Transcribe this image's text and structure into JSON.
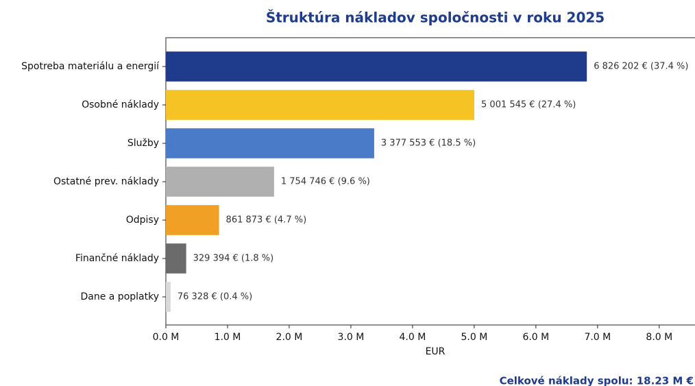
{
  "chart_data": {
    "type": "hbar",
    "title": "Štruktúra nákladov spoločnosti v roku 2025",
    "xlabel": "EUR",
    "annotation": "Celkové náklady spolu: 18.23 M €",
    "categories": [
      "Spotreba materiálu a energií",
      "Osobné náklady",
      "Služby",
      "Ostatné prev. náklady",
      "Odpisy",
      "Finančné náklady",
      "Dane a poplatky"
    ],
    "values": [
      6826202,
      5001545,
      3377553,
      1754746,
      861873,
      329394,
      76328
    ],
    "value_labels": [
      "6 826 202 €  (37.4 %)",
      "5 001 545 €  (27.4 %)",
      "3 377 553 €  (18.5 %)",
      "1 754 746 €  (9.6 %)",
      "861 873 €  (4.7 %)",
      "329 394 €  (1.8 %)",
      "76 328 €  (0.4 %)"
    ],
    "colors": [
      "#1f3c8c",
      "#f5c324",
      "#4a7bc8",
      "#b0b0b0",
      "#f0a024",
      "#6b6b6b",
      "#d9d9d9"
    ],
    "xlim": [
      0,
      8580000
    ],
    "xticks": [
      {
        "value": 0,
        "label": "0.0 M"
      },
      {
        "value": 1000000,
        "label": "1.0 M"
      },
      {
        "value": 2000000,
        "label": "2.0 M"
      },
      {
        "value": 3000000,
        "label": "3.0 M"
      },
      {
        "value": 4000000,
        "label": "4.0 M"
      },
      {
        "value": 5000000,
        "label": "5.0 M"
      },
      {
        "value": 6000000,
        "label": "6.0 M"
      },
      {
        "value": 7000000,
        "label": "7.0 M"
      },
      {
        "value": 8000000,
        "label": "8.0 M"
      }
    ]
  }
}
